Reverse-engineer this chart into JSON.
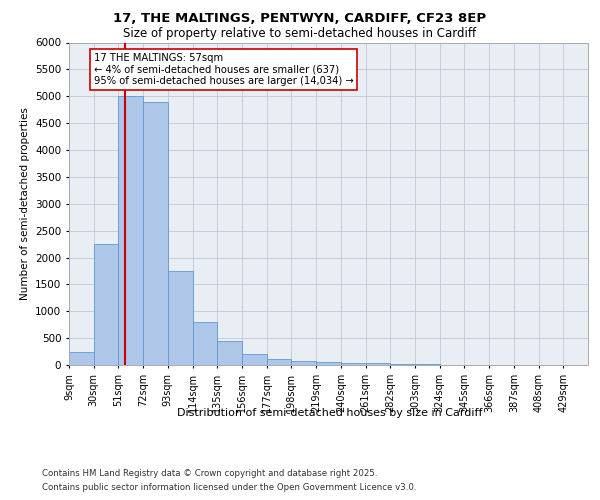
{
  "title1": "17, THE MALTINGS, PENTWYN, CARDIFF, CF23 8EP",
  "title2": "Size of property relative to semi-detached houses in Cardiff",
  "xlabel": "Distribution of semi-detached houses by size in Cardiff",
  "ylabel": "Number of semi-detached properties",
  "footnote1": "Contains HM Land Registry data © Crown copyright and database right 2025.",
  "footnote2": "Contains public sector information licensed under the Open Government Licence v3.0.",
  "annotation_title": "17 THE MALTINGS: 57sqm",
  "annotation_line1": "← 4% of semi-detached houses are smaller (637)",
  "annotation_line2": "95% of semi-detached houses are larger (14,034) →",
  "property_size": 57,
  "bin_labels": [
    "9sqm",
    "30sqm",
    "51sqm",
    "72sqm",
    "93sqm",
    "114sqm",
    "135sqm",
    "156sqm",
    "177sqm",
    "198sqm",
    "219sqm",
    "240sqm",
    "261sqm",
    "282sqm",
    "303sqm",
    "324sqm",
    "345sqm",
    "366sqm",
    "387sqm",
    "408sqm",
    "429sqm"
  ],
  "bin_edges": [
    9,
    30,
    51,
    72,
    93,
    114,
    135,
    156,
    177,
    198,
    219,
    240,
    261,
    282,
    303,
    324,
    345,
    366,
    387,
    408,
    429
  ],
  "bar_heights": [
    250,
    2250,
    5000,
    4900,
    1750,
    800,
    450,
    200,
    120,
    80,
    60,
    40,
    30,
    20,
    10,
    5,
    3,
    2,
    1,
    0
  ],
  "bar_color": "#aec6e8",
  "bar_edge_color": "#5b9bd5",
  "red_line_color": "#cc0000",
  "background_color": "#e8eef4",
  "grid_color": "#c0c8d8",
  "ylim": [
    0,
    6000
  ],
  "yticks": [
    0,
    500,
    1000,
    1500,
    2000,
    2500,
    3000,
    3500,
    4000,
    4500,
    5000,
    5500,
    6000
  ]
}
